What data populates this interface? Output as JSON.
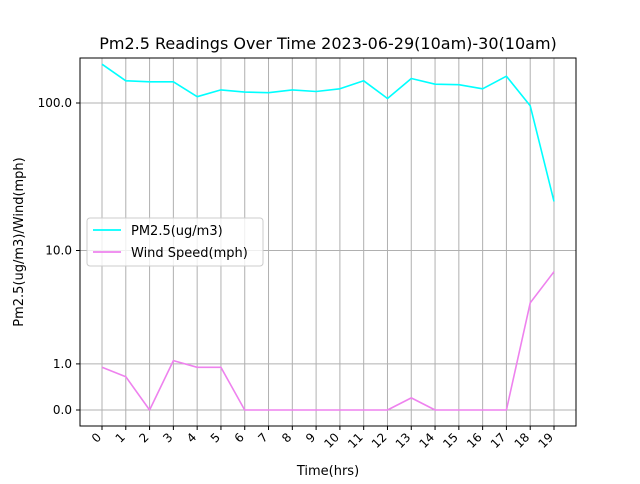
{
  "chart_data": {
    "type": "line",
    "title": "Pm2.5 Readings Over Time 2023-06-29(10am)-30(10am)",
    "xlabel": "Time(hrs)",
    "ylabel": "Pm2.5(ug/m3)/Wind(mph)",
    "y_scale": "log1p",
    "ylim": [
      0,
      200
    ],
    "y_ticks": [
      0,
      1,
      10,
      100
    ],
    "y_tick_labels": [
      "0.0",
      "1.0",
      "10.0",
      "100.0"
    ],
    "grid": true,
    "legend_position": "center-left",
    "x": [
      0,
      1,
      2,
      3,
      4,
      5,
      6,
      7,
      8,
      9,
      10,
      11,
      12,
      13,
      14,
      15,
      16,
      17,
      18,
      19
    ],
    "x_tick_labels": [
      "0",
      "1",
      "2",
      "3",
      "4",
      "5",
      "6",
      "7",
      "8",
      "9",
      "10",
      "11",
      "12",
      "13",
      "14",
      "15",
      "16",
      "17",
      "18",
      "19"
    ],
    "series": [
      {
        "name": "PM2.5(ug/m3)",
        "color": "#00ffff",
        "values": [
          180,
          140,
          138,
          138,
          110,
          122,
          118,
          117,
          122,
          119,
          124,
          140,
          107,
          145,
          133,
          132,
          124,
          150,
          96,
          22
        ]
      },
      {
        "name": "Wind Speed(mph)",
        "color": "#ee82ee",
        "values": [
          0.9,
          0.65,
          0,
          1.1,
          0.9,
          0.9,
          0,
          0,
          0,
          0,
          0,
          0,
          0,
          0.2,
          0,
          0,
          0,
          0,
          4.0,
          7.0
        ]
      }
    ]
  }
}
